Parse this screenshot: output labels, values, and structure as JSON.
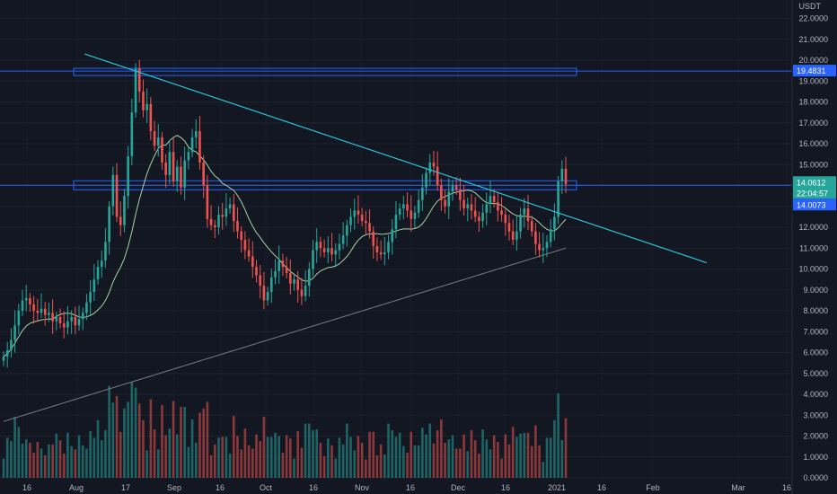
{
  "chart_data": {
    "type": "candlestick",
    "currency_label": "USDT",
    "price_ticks": [
      "22.0000",
      "21.0000",
      "20.0000",
      "19.0000",
      "18.0000",
      "17.0000",
      "16.0000",
      "15.0000",
      "14.0000",
      "13.0000",
      "12.0000",
      "11.0000",
      "10.0000",
      "9.0000",
      "8.0000",
      "7.0000",
      "6.0000",
      "5.0000",
      "4.0000",
      "3.0000",
      "2.0000",
      "1.0000",
      "0.0000"
    ],
    "time_ticks": [
      "16",
      "Aug",
      "17",
      "Sep",
      "16",
      "Oct",
      "16",
      "Nov",
      "16",
      "Dec",
      "16",
      "2021",
      "16",
      "Feb",
      "Mar",
      "16"
    ],
    "price_tags": {
      "resistance": "19.4831",
      "last_price": "14.0612",
      "countdown": "22:04:57",
      "support": "14.0073"
    },
    "levels": {
      "resistance": 19.48,
      "support": 14.01
    },
    "trendline": {
      "from": [
        0.1,
        20.3
      ],
      "to": [
        0.84,
        10.3
      ]
    },
    "price_range": [
      0,
      22.5
    ],
    "colors": {
      "up": "#26a69a",
      "down": "#ef5350",
      "trendline": "#26c6da",
      "levels": "#2962ff",
      "ma_fast": "#a5d6a7",
      "ma_slow": "#787b86"
    },
    "closes": [
      5.8,
      6.1,
      6.6,
      7.3,
      8.0,
      8.5,
      8.6,
      8.3,
      8.0,
      7.9,
      8.1,
      7.8,
      7.9,
      7.5,
      7.7,
      7.4,
      7.2,
      7.5,
      7.7,
      7.3,
      7.6,
      7.9,
      8.4,
      8.9,
      9.5,
      10.1,
      10.4,
      11.3,
      13.0,
      14.5,
      12.5,
      12.1,
      13.5,
      15.4,
      17.5,
      19.6,
      18.5,
      17.6,
      17.9,
      16.6,
      15.9,
      16.3,
      15.1,
      14.5,
      15.6,
      14.2,
      14.9,
      13.9,
      15.2,
      15.6,
      16.3,
      16.6,
      15.1,
      14.0,
      12.4,
      12.1,
      12.0,
      12.6,
      12.5,
      12.9,
      13.1,
      12.3,
      11.8,
      11.4,
      10.9,
      10.6,
      10.1,
      9.7,
      9.2,
      8.5,
      8.9,
      9.6,
      9.9,
      10.4,
      10.1,
      9.8,
      9.3,
      9.5,
      9.0,
      8.7,
      9.2,
      10.0,
      10.9,
      11.3,
      11.0,
      10.8,
      11.0,
      10.7,
      10.9,
      11.2,
      11.6,
      12.1,
      12.5,
      12.8,
      12.6,
      12.3,
      12.2,
      11.8,
      11.1,
      10.8,
      10.7,
      10.8,
      11.3,
      11.9,
      12.6,
      12.9,
      13.1,
      12.8,
      12.4,
      12.7,
      13.3,
      13.9,
      14.6,
      15.1,
      14.9,
      14.0,
      13.3,
      13.0,
      13.7,
      14.0,
      13.8,
      13.3,
      12.9,
      13.1,
      12.8,
      12.5,
      12.3,
      12.7,
      13.1,
      13.5,
      13.2,
      12.8,
      12.6,
      12.2,
      11.8,
      11.4,
      11.8,
      12.6,
      12.9,
      12.3,
      11.8,
      11.2,
      10.9,
      11.0,
      11.3,
      11.9,
      12.5,
      14.2,
      14.8,
      14.06
    ]
  }
}
